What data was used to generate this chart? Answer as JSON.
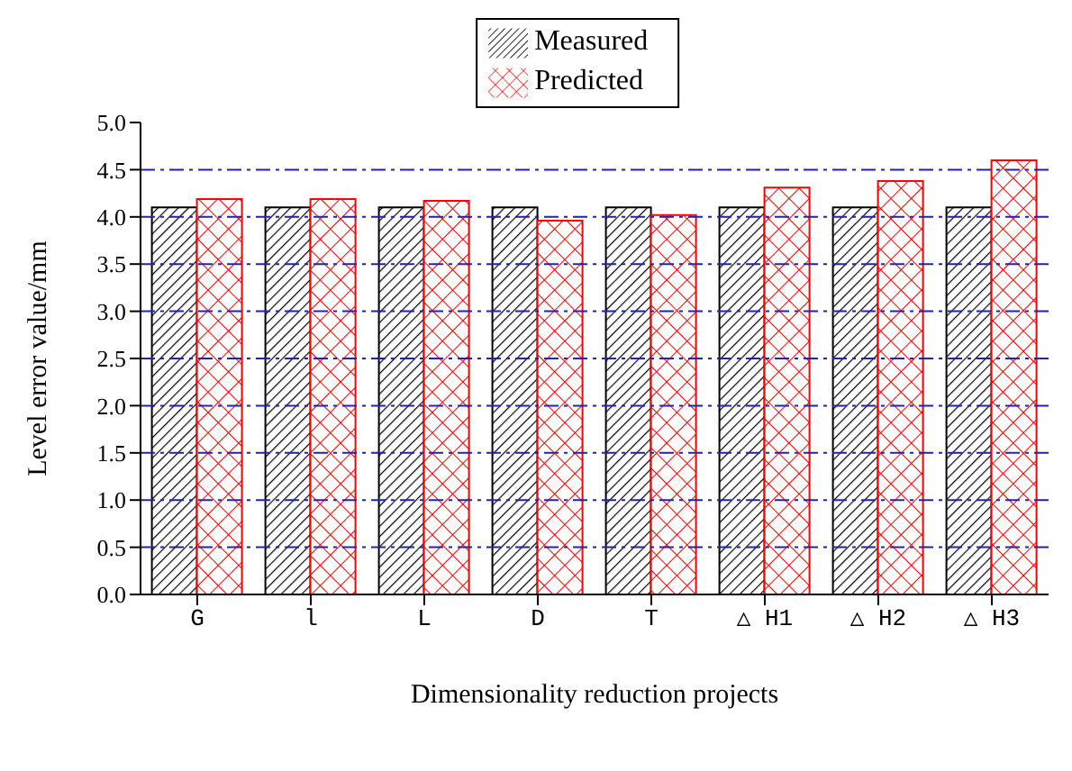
{
  "chart_data": {
    "type": "bar",
    "xlabel": "Dimensionality reduction projects",
    "ylabel": "Level error value/mm",
    "categories": [
      "G",
      "l",
      "L",
      "D",
      "T",
      "△ H1",
      "△ H2",
      "△ H3"
    ],
    "series": [
      {
        "name": "Measured",
        "color": "#000000",
        "values": [
          4.1,
          4.1,
          4.1,
          4.1,
          4.1,
          4.1,
          4.1,
          4.1
        ]
      },
      {
        "name": "Predicted",
        "color": "#ff0000",
        "values": [
          4.19,
          4.19,
          4.17,
          3.96,
          4.02,
          4.31,
          4.38,
          4.6
        ]
      }
    ],
    "ylim": [
      0,
      5
    ],
    "yticks": [
      {
        "value": 0,
        "label": "0.0"
      },
      0.5,
      {
        "value": 1,
        "label": "1.0"
      },
      1.5,
      {
        "value": 2,
        "label": "2.0"
      },
      2.5,
      {
        "value": 3,
        "label": "3.0"
      },
      3.5,
      {
        "value": 4,
        "label": "4.0"
      },
      4.5,
      {
        "value": 5,
        "label": "5.0"
      }
    ],
    "grid": "y",
    "legend": "top"
  }
}
